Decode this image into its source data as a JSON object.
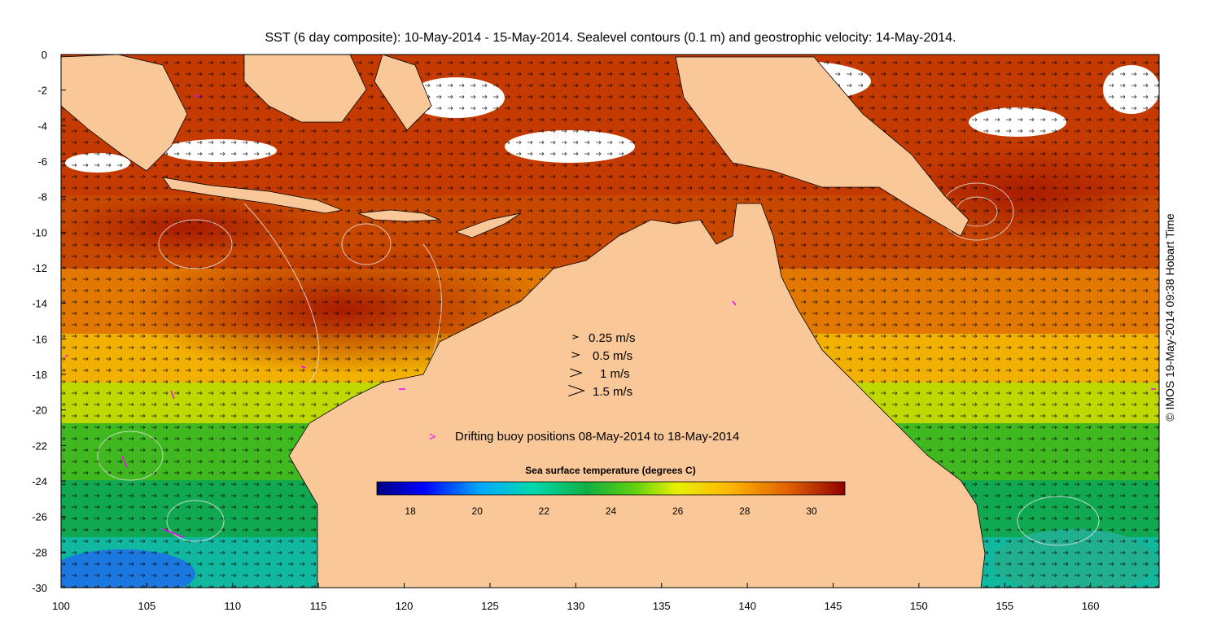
{
  "title": "SST (6 day composite): 10-May-2014 - 15-May-2014. Sealevel contours (0.1 m) and geostrophic velocity: 14-May-2014.",
  "credit": "© IMOS 19-May-2014 09:38 Hobart Time",
  "map_data": {
    "lon_range": [
      100,
      164
    ],
    "lat_range": [
      -30,
      0
    ],
    "x_ticks": [
      100,
      105,
      110,
      115,
      120,
      125,
      130,
      135,
      140,
      145,
      150,
      155,
      160
    ],
    "y_ticks": [
      0,
      -2,
      -4,
      -6,
      -8,
      -10,
      -12,
      -14,
      -16,
      -18,
      -20,
      -22,
      -24,
      -26,
      -28,
      -30
    ],
    "land_color": "#fac898",
    "cloud_color": "#ffffff"
  },
  "velocity_legend": [
    {
      "label": "0.25 m/s",
      "speed": 0.25
    },
    {
      "label": "0.5 m/s",
      "speed": 0.5
    },
    {
      "label": "1 m/s",
      "speed": 1
    },
    {
      "label": "1.5 m/s",
      "speed": 1.5
    }
  ],
  "buoy_legend": {
    "label": "Drifting buoy positions 08-May-2014 to 18-May-2014",
    "color": "#ff00ff"
  },
  "colorbar": {
    "title": "Sea surface temperature (degrees C)",
    "range": [
      17,
      31
    ],
    "ticks": [
      "18",
      "20",
      "22",
      "24",
      "26",
      "28",
      "30"
    ],
    "colors": [
      "#00007f",
      "#0000d0",
      "#0050ff",
      "#00a8ff",
      "#00e0e0",
      "#00c878",
      "#10b040",
      "#50d020",
      "#c0e800",
      "#ffff00",
      "#ffc000",
      "#ff8000",
      "#e05000",
      "#b01800",
      "#800000"
    ]
  }
}
